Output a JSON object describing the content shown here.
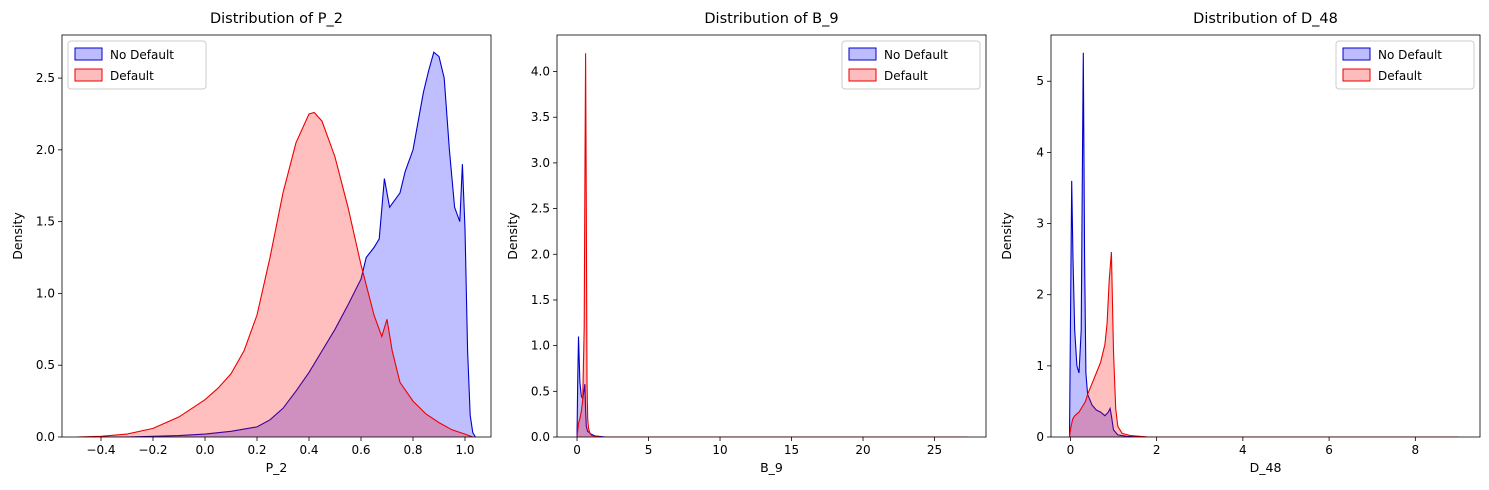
{
  "chart_data": [
    {
      "type": "area",
      "title": "Distribution of P_2",
      "xlabel": "P_2",
      "ylabel": "Density",
      "xlim": [
        -0.55,
        1.1
      ],
      "ylim": [
        0,
        2.8
      ],
      "xticks": [
        -0.4,
        -0.2,
        0.0,
        0.2,
        0.4,
        0.6,
        0.8,
        1.0
      ],
      "xtick_labels": [
        "−0.4",
        "−0.2",
        "0.0",
        "0.2",
        "0.4",
        "0.6",
        "0.8",
        "1.0"
      ],
      "yticks": [
        0.0,
        0.5,
        1.0,
        1.5,
        2.0,
        2.5
      ],
      "ytick_labels": [
        "0.0",
        "0.5",
        "1.0",
        "1.5",
        "2.0",
        "2.5"
      ],
      "legend_position": "upper-left",
      "series": [
        {
          "name": "No Default",
          "color": "#0000cc",
          "fill": "#bcbcff",
          "x": [
            -0.49,
            -0.4,
            -0.3,
            -0.2,
            -0.1,
            0.0,
            0.1,
            0.2,
            0.25,
            0.3,
            0.35,
            0.4,
            0.45,
            0.5,
            0.55,
            0.6,
            0.62,
            0.65,
            0.67,
            0.69,
            0.71,
            0.73,
            0.75,
            0.77,
            0.8,
            0.82,
            0.84,
            0.86,
            0.88,
            0.9,
            0.92,
            0.94,
            0.96,
            0.98,
            0.99,
            1.0,
            1.01,
            1.02,
            1.03,
            1.04
          ],
          "y": [
            0.0,
            0.0,
            0.0,
            0.005,
            0.01,
            0.02,
            0.04,
            0.07,
            0.12,
            0.2,
            0.32,
            0.45,
            0.6,
            0.75,
            0.92,
            1.1,
            1.25,
            1.32,
            1.38,
            1.8,
            1.6,
            1.65,
            1.7,
            1.85,
            2.0,
            2.2,
            2.4,
            2.55,
            2.68,
            2.65,
            2.5,
            2.0,
            1.6,
            1.5,
            1.9,
            1.45,
            0.6,
            0.15,
            0.03,
            0.0
          ]
        },
        {
          "name": "Default",
          "color": "#ee0000",
          "fill": "#ffbcbc",
          "x": [
            -0.49,
            -0.4,
            -0.3,
            -0.2,
            -0.1,
            0.0,
            0.05,
            0.1,
            0.15,
            0.2,
            0.25,
            0.3,
            0.35,
            0.4,
            0.42,
            0.45,
            0.5,
            0.55,
            0.6,
            0.65,
            0.68,
            0.7,
            0.72,
            0.75,
            0.8,
            0.85,
            0.9,
            0.95,
            1.0,
            1.03
          ],
          "y": [
            0.0,
            0.005,
            0.02,
            0.06,
            0.14,
            0.26,
            0.34,
            0.44,
            0.6,
            0.85,
            1.25,
            1.7,
            2.05,
            2.25,
            2.26,
            2.2,
            1.95,
            1.6,
            1.2,
            0.85,
            0.7,
            0.82,
            0.6,
            0.38,
            0.25,
            0.16,
            0.1,
            0.05,
            0.02,
            0.0
          ]
        }
      ]
    },
    {
      "type": "area",
      "title": "Distribution of B_9",
      "xlabel": "B_9",
      "ylabel": "Density",
      "xlim": [
        -1.4,
        28.6
      ],
      "ylim": [
        0,
        4.4
      ],
      "xticks": [
        0,
        5,
        10,
        15,
        20,
        25
      ],
      "xtick_labels": [
        "0",
        "5",
        "10",
        "15",
        "20",
        "25"
      ],
      "yticks": [
        0.0,
        0.5,
        1.0,
        1.5,
        2.0,
        2.5,
        3.0,
        3.5,
        4.0
      ],
      "ytick_labels": [
        "0.0",
        "0.5",
        "1.0",
        "1.5",
        "2.0",
        "2.5",
        "3.0",
        "3.5",
        "4.0"
      ],
      "legend_position": "upper-right",
      "series": [
        {
          "name": "No Default",
          "color": "#0000cc",
          "fill": "#bcbcff",
          "x": [
            0.0,
            0.05,
            0.1,
            0.15,
            0.2,
            0.3,
            0.4,
            0.5,
            0.55,
            0.6,
            0.65,
            0.75,
            0.85,
            1.0,
            1.3,
            2.0,
            27.3
          ],
          "y": [
            0.0,
            0.6,
            1.1,
            0.85,
            0.6,
            0.45,
            0.42,
            0.52,
            0.58,
            0.3,
            0.12,
            0.06,
            0.05,
            0.03,
            0.01,
            0.0,
            0.0
          ]
        },
        {
          "name": "Default",
          "color": "#ee0000",
          "fill": "#ffbcbc",
          "x": [
            0.0,
            0.1,
            0.2,
            0.3,
            0.4,
            0.5,
            0.55,
            0.6,
            0.65,
            0.7,
            0.75,
            0.8,
            0.9,
            1.0,
            1.2,
            1.6,
            3.0,
            27.3
          ],
          "y": [
            0.0,
            0.15,
            0.2,
            0.28,
            0.4,
            1.2,
            2.8,
            4.2,
            2.5,
            0.6,
            0.2,
            0.1,
            0.04,
            0.02,
            0.01,
            0.0,
            0.0,
            0.0
          ]
        }
      ]
    },
    {
      "type": "area",
      "title": "Distribution of D_48",
      "xlabel": "D_48",
      "ylabel": "Density",
      "xlim": [
        -0.45,
        9.5
      ],
      "ylim": [
        0,
        5.65
      ],
      "xticks": [
        0,
        2,
        4,
        6,
        8
      ],
      "xtick_labels": [
        "0",
        "2",
        "4",
        "6",
        "8"
      ],
      "yticks": [
        0,
        1,
        2,
        3,
        4,
        5
      ],
      "ytick_labels": [
        "0",
        "1",
        "2",
        "3",
        "4",
        "5"
      ],
      "legend_position": "upper-right",
      "series": [
        {
          "name": "No Default",
          "color": "#0000cc",
          "fill": "#bcbcff",
          "x": [
            -0.02,
            0.0,
            0.03,
            0.06,
            0.1,
            0.15,
            0.2,
            0.25,
            0.28,
            0.3,
            0.33,
            0.36,
            0.4,
            0.5,
            0.6,
            0.7,
            0.8,
            0.88,
            0.92,
            0.95,
            1.0,
            1.1,
            1.3,
            1.6,
            9.0
          ],
          "y": [
            0.0,
            1.5,
            3.6,
            2.5,
            1.5,
            1.0,
            0.9,
            1.5,
            4.0,
            5.4,
            2.5,
            0.9,
            0.6,
            0.45,
            0.38,
            0.35,
            0.3,
            0.35,
            0.4,
            0.3,
            0.1,
            0.03,
            0.01,
            0.0,
            0.0
          ]
        },
        {
          "name": "Default",
          "color": "#ee0000",
          "fill": "#ffbcbc",
          "x": [
            -0.02,
            0.0,
            0.05,
            0.1,
            0.2,
            0.3,
            0.35,
            0.4,
            0.5,
            0.6,
            0.7,
            0.8,
            0.85,
            0.9,
            0.95,
            1.0,
            1.05,
            1.1,
            1.2,
            1.4,
            1.8,
            9.0
          ],
          "y": [
            0.0,
            0.1,
            0.25,
            0.3,
            0.35,
            0.45,
            0.5,
            0.6,
            0.75,
            0.9,
            1.05,
            1.3,
            1.6,
            2.2,
            2.6,
            1.2,
            0.4,
            0.15,
            0.05,
            0.02,
            0.0,
            0.0
          ]
        }
      ]
    }
  ]
}
